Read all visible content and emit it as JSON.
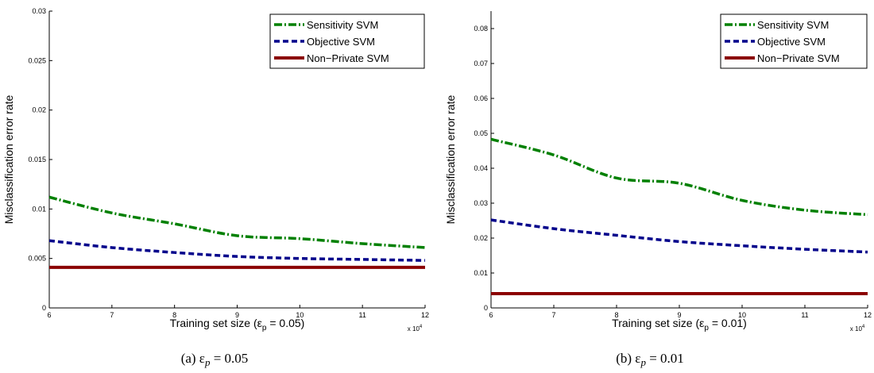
{
  "chart_data": [
    {
      "type": "line",
      "x": [
        6,
        7,
        8,
        9,
        10,
        11,
        12
      ],
      "x_multiplier_label": "x 10",
      "x_multiplier_exp": "4",
      "xlabel": "Training set size (ε",
      "xlabel_sub": "p",
      "xlabel_tail": " = 0.05)",
      "ylabel": "Misclassification error rate",
      "xlim": [
        6,
        12
      ],
      "ylim": [
        0,
        0.03
      ],
      "xticks": [
        "6",
        "7",
        "8",
        "9",
        "10",
        "11",
        "12"
      ],
      "yticks": [
        "0",
        "0.005",
        "0.01",
        "0.015",
        "0.02",
        "0.025",
        "0.03"
      ],
      "ytick_values": [
        0,
        0.005,
        0.01,
        0.015,
        0.02,
        0.025,
        0.03
      ],
      "legend_position": "top-right",
      "series": [
        {
          "name": "Sensitivity SVM",
          "color": "#008000",
          "style": "dash-dot",
          "values": [
            0.0112,
            0.0096,
            0.0085,
            0.0073,
            0.007,
            0.0065,
            0.0061
          ]
        },
        {
          "name": "Objective SVM",
          "color": "#00008b",
          "style": "dashed",
          "values": [
            0.0068,
            0.0061,
            0.0056,
            0.0052,
            0.005,
            0.0049,
            0.0048
          ]
        },
        {
          "name": "Non−Private SVM",
          "color": "#8b0000",
          "style": "solid",
          "values": [
            0.0041,
            0.0041,
            0.0041,
            0.0041,
            0.0041,
            0.0041,
            0.0041
          ]
        }
      ],
      "caption_prefix": "(a)  ε",
      "caption_sub": "p",
      "caption_tail": " = 0.05"
    },
    {
      "type": "line",
      "x": [
        6,
        7,
        8,
        9,
        10,
        11,
        12
      ],
      "x_multiplier_label": "x 10",
      "x_multiplier_exp": "4",
      "xlabel": "Training set size (ε",
      "xlabel_sub": "p",
      "xlabel_tail": " = 0.01)",
      "ylabel": "Misclassification error rate",
      "xlim": [
        6,
        12
      ],
      "ylim": [
        0,
        0.085
      ],
      "xticks": [
        "6",
        "7",
        "8",
        "9",
        "10",
        "11",
        "12"
      ],
      "yticks": [
        "0",
        "0.01",
        "0.02",
        "0.03",
        "0.04",
        "0.05",
        "0.06",
        "0.07",
        "0.08"
      ],
      "ytick_values": [
        0,
        0.01,
        0.02,
        0.03,
        0.04,
        0.05,
        0.06,
        0.07,
        0.08
      ],
      "legend_position": "top-right",
      "series": [
        {
          "name": "Sensitivity SVM",
          "color": "#008000",
          "style": "dash-dot",
          "values": [
            0.0483,
            0.0438,
            0.0372,
            0.0357,
            0.0308,
            0.028,
            0.0267
          ]
        },
        {
          "name": "Objective SVM",
          "color": "#00008b",
          "style": "dashed",
          "values": [
            0.0252,
            0.0227,
            0.0208,
            0.019,
            0.0178,
            0.0168,
            0.016
          ]
        },
        {
          "name": "Non−Private SVM",
          "color": "#8b0000",
          "style": "solid",
          "values": [
            0.0041,
            0.0041,
            0.0041,
            0.0041,
            0.0041,
            0.0041,
            0.0041
          ]
        }
      ],
      "caption_prefix": "(b)  ε",
      "caption_sub": "p",
      "caption_tail": " = 0.01"
    }
  ]
}
